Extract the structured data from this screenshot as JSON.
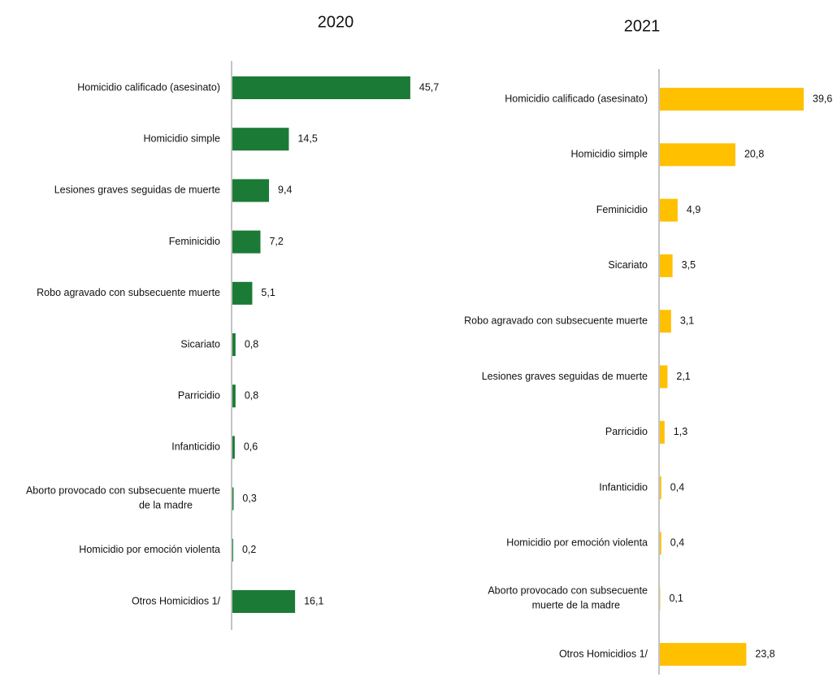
{
  "chart_data": [
    {
      "type": "bar",
      "orientation": "horizontal",
      "title": "2020",
      "color": "#1b7a35",
      "categories": [
        "Homicidio calificado (asesinato)",
        "Homicidio simple",
        "Lesiones graves seguidas de muerte",
        "Feminicidio",
        "Robo agravado con subsecuente muerte",
        "Sicariato",
        "Parricidio",
        "Infanticidio",
        "Aborto provocado con subsecuente muerte\nde la madre",
        "Homicidio por emoción violenta",
        "Otros Homicidios 1/"
      ],
      "values": [
        45.7,
        14.5,
        9.4,
        7.2,
        5.1,
        0.8,
        0.8,
        0.6,
        0.3,
        0.2,
        16.1
      ],
      "value_labels": [
        "45,7",
        "14,5",
        "9,4",
        "7,2",
        "5,1",
        "0,8",
        "0,8",
        "0,6",
        "0,3",
        "0,2",
        "16,1"
      ]
    },
    {
      "type": "bar",
      "orientation": "horizontal",
      "title": "2021",
      "color": "#ffc000",
      "categories": [
        "Homicidio calificado (asesinato)",
        "Homicidio simple",
        "Feminicidio",
        "Sicariato",
        "Robo agravado con subsecuente muerte",
        "Lesiones graves seguidas de muerte",
        "Parricidio",
        "Infanticidio",
        "Homicidio por emoción violenta",
        "Aborto provocado con subsecuente\nmuerte de la madre",
        "Otros Homicidios 1/"
      ],
      "values": [
        39.6,
        20.8,
        4.9,
        3.5,
        3.1,
        2.1,
        1.3,
        0.4,
        0.4,
        0.1,
        23.8
      ],
      "value_labels": [
        "39,6",
        "20,8",
        "4,9",
        "3,5",
        "3,1",
        "2,1",
        "1,3",
        "0,4",
        "0,4",
        "0,1",
        "23,8"
      ]
    }
  ]
}
